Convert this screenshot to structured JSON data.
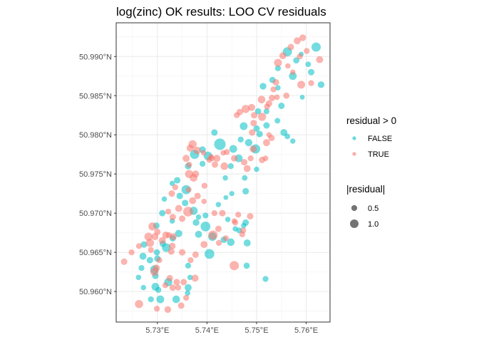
{
  "chart_data": {
    "type": "scatter",
    "title": "log(zinc) OK results: LOO CV residuals",
    "xlabel": "",
    "ylabel": "",
    "x_ticks": [
      {
        "value": 5.73,
        "label": "5.73°E"
      },
      {
        "value": 5.74,
        "label": "5.74°E"
      },
      {
        "value": 5.75,
        "label": "5.75°E"
      },
      {
        "value": 5.76,
        "label": "5.76°E"
      }
    ],
    "y_ticks": [
      {
        "value": 50.96,
        "label": "50.960°N"
      },
      {
        "value": 50.965,
        "label": "50.965°N"
      },
      {
        "value": 50.97,
        "label": "50.970°N"
      },
      {
        "value": 50.975,
        "label": "50.975°N"
      },
      {
        "value": 50.98,
        "label": "50.980°N"
      },
      {
        "value": 50.985,
        "label": "50.985°N"
      },
      {
        "value": 50.99,
        "label": "50.990°N"
      }
    ],
    "xlim": [
      5.7217,
      5.7648
    ],
    "ylim": [
      50.9561,
      50.9943
    ],
    "grid": true,
    "legend_position": "right",
    "colors": {
      "FALSE": "#00BFC4",
      "TRUE": "#F8766D"
    },
    "legend_color": {
      "title": "residual > 0",
      "entries": [
        {
          "label": "FALSE",
          "key": "FALSE"
        },
        {
          "label": "TRUE",
          "key": "TRUE"
        }
      ]
    },
    "legend_size": {
      "title": "|residual|",
      "entries": [
        {
          "label": "0.5",
          "value": 0.5
        },
        {
          "label": "1.0",
          "value": 1.0
        }
      ]
    },
    "series": [
      {
        "name": "FALSE",
        "points": [
          [
            5.759,
            50.9903,
            0.16
          ],
          [
            5.762,
            50.9912,
            0.55
          ],
          [
            5.7604,
            50.989,
            0.22
          ],
          [
            5.758,
            50.9895,
            0.28
          ],
          [
            5.7562,
            50.9906,
            0.55
          ],
          [
            5.761,
            50.988,
            0.3
          ],
          [
            5.7573,
            50.9875,
            0.42
          ],
          [
            5.7543,
            50.9885,
            0.25
          ],
          [
            5.7532,
            50.987,
            0.28
          ],
          [
            5.7513,
            50.9862,
            0.32
          ],
          [
            5.7543,
            50.986,
            0.2
          ],
          [
            5.763,
            50.9864,
            0.32
          ],
          [
            5.7592,
            50.9848,
            0.16
          ],
          [
            5.755,
            50.9837,
            0.3
          ],
          [
            5.752,
            50.983,
            0.24
          ],
          [
            5.7542,
            50.9818,
            0.22
          ],
          [
            5.7503,
            50.983,
            0.28
          ],
          [
            5.752,
            50.9812,
            0.3
          ],
          [
            5.7555,
            50.9803,
            0.35
          ],
          [
            5.75,
            50.9808,
            0.3
          ],
          [
            5.7484,
            50.979,
            0.38
          ],
          [
            5.7474,
            50.9811,
            0.42
          ],
          [
            5.7468,
            50.9794,
            0.25
          ],
          [
            5.7573,
            50.9792,
            0.2
          ],
          [
            5.7562,
            50.9798,
            0.22
          ],
          [
            5.7506,
            50.9801,
            0.3
          ],
          [
            5.7498,
            50.9782,
            0.55
          ],
          [
            5.7426,
            50.9788,
            0.75
          ],
          [
            5.7453,
            50.9782,
            0.42
          ],
          [
            5.7464,
            50.977,
            0.42
          ],
          [
            5.7402,
            50.9773,
            0.5
          ],
          [
            5.7375,
            50.9775,
            0.55
          ],
          [
            5.7391,
            50.9781,
            0.32
          ],
          [
            5.7415,
            50.9803,
            0.3
          ],
          [
            5.7448,
            50.976,
            0.25
          ],
          [
            5.7391,
            50.9763,
            0.25
          ],
          [
            5.7362,
            50.976,
            0.3
          ],
          [
            5.7437,
            50.9745,
            0.2
          ],
          [
            5.7476,
            50.9745,
            0.22
          ],
          [
            5.75,
            50.9756,
            0.2
          ],
          [
            5.7478,
            50.9728,
            0.3
          ],
          [
            5.7438,
            50.972,
            0.15
          ],
          [
            5.745,
            50.9725,
            0.18
          ],
          [
            5.7423,
            50.9711,
            0.2
          ],
          [
            5.7358,
            50.973,
            0.55
          ],
          [
            5.7345,
            50.9722,
            0.3
          ],
          [
            5.734,
            50.9742,
            0.3
          ],
          [
            5.733,
            50.9738,
            0.2
          ],
          [
            5.7314,
            50.9718,
            0.2
          ],
          [
            5.731,
            50.97,
            0.3
          ],
          [
            5.7356,
            50.9713,
            0.3
          ],
          [
            5.7373,
            50.9703,
            0.45
          ],
          [
            5.7383,
            50.9695,
            0.2
          ],
          [
            5.7397,
            50.9697,
            0.25
          ],
          [
            5.7442,
            50.9692,
            0.2
          ],
          [
            5.7478,
            50.9688,
            0.3
          ],
          [
            5.7474,
            50.9684,
            0.2
          ],
          [
            5.7457,
            50.968,
            0.2
          ],
          [
            5.7383,
            50.9673,
            0.35
          ],
          [
            5.7378,
            50.9688,
            0.32
          ],
          [
            5.733,
            50.969,
            0.2
          ],
          [
            5.7298,
            50.9684,
            0.3
          ],
          [
            5.7331,
            50.9668,
            0.3
          ],
          [
            5.7343,
            50.9674,
            0.38
          ],
          [
            5.7397,
            50.9683,
            0.6
          ],
          [
            5.7411,
            50.967,
            0.48
          ],
          [
            5.7448,
            50.9663,
            0.4
          ],
          [
            5.7434,
            50.9666,
            0.3
          ],
          [
            5.7465,
            50.9678,
            0.25
          ],
          [
            5.7481,
            50.9662,
            0.35
          ],
          [
            5.7273,
            50.966,
            0.3
          ],
          [
            5.7299,
            50.965,
            0.28
          ],
          [
            5.7311,
            50.9661,
            0.3
          ],
          [
            5.7318,
            50.9656,
            0.5
          ],
          [
            5.73,
            50.9642,
            0.3
          ],
          [
            5.7285,
            50.964,
            0.3
          ],
          [
            5.7268,
            50.963,
            0.25
          ],
          [
            5.7271,
            50.9645,
            0.35
          ],
          [
            5.7294,
            50.9628,
            0.48
          ],
          [
            5.7405,
            50.9648,
            0.6
          ],
          [
            5.748,
            50.9633,
            0.28
          ],
          [
            5.7362,
            50.9633,
            0.25
          ],
          [
            5.7322,
            50.9612,
            0.45
          ],
          [
            5.7302,
            50.9602,
            0.25
          ],
          [
            5.7296,
            50.9606,
            0.42
          ],
          [
            5.7306,
            50.959,
            0.42
          ],
          [
            5.7338,
            50.959,
            0.4
          ],
          [
            5.7361,
            50.9598,
            0.2
          ],
          [
            5.7366,
            50.9618,
            0.2
          ],
          [
            5.7296,
            50.962,
            0.3
          ],
          [
            5.7272,
            50.9605,
            0.2
          ],
          [
            5.7287,
            50.959,
            0.25
          ],
          [
            5.7518,
            50.9616,
            0.25
          ],
          [
            5.7362,
            50.9605,
            0.35
          ],
          [
            5.7262,
            50.9618,
            0.2
          ]
        ]
      },
      {
        "name": "TRUE",
        "points": [
          [
            5.7593,
            50.9924,
            0.32
          ],
          [
            5.7582,
            50.992,
            0.35
          ],
          [
            5.7601,
            50.9907,
            0.25
          ],
          [
            5.7569,
            50.9912,
            0.3
          ],
          [
            5.7627,
            50.9896,
            0.35
          ],
          [
            5.7587,
            50.99,
            0.25
          ],
          [
            5.7553,
            50.9901,
            0.35
          ],
          [
            5.7543,
            50.9892,
            0.42
          ],
          [
            5.7563,
            50.9888,
            0.2
          ],
          [
            5.7573,
            50.988,
            0.2
          ],
          [
            5.759,
            50.9864,
            0.42
          ],
          [
            5.761,
            50.9866,
            0.25
          ],
          [
            5.7539,
            50.9867,
            0.3
          ],
          [
            5.7534,
            50.9858,
            0.25
          ],
          [
            5.756,
            50.985,
            0.28
          ],
          [
            5.7541,
            50.9848,
            0.22
          ],
          [
            5.7531,
            50.9847,
            0.3
          ],
          [
            5.751,
            50.9845,
            0.4
          ],
          [
            5.7525,
            50.984,
            0.3
          ],
          [
            5.7521,
            50.9836,
            0.25
          ],
          [
            5.749,
            50.9835,
            0.35
          ],
          [
            5.7478,
            50.9833,
            0.45
          ],
          [
            5.7466,
            50.9829,
            0.3
          ],
          [
            5.746,
            50.9825,
            0.25
          ],
          [
            5.7511,
            50.9823,
            0.45
          ],
          [
            5.7495,
            50.9825,
            0.3
          ],
          [
            5.7494,
            50.9815,
            0.3
          ],
          [
            5.7491,
            50.9803,
            0.3
          ],
          [
            5.7525,
            50.98,
            0.2
          ],
          [
            5.753,
            50.9796,
            0.28
          ],
          [
            5.752,
            50.979,
            0.35
          ],
          [
            5.7493,
            50.9782,
            0.35
          ],
          [
            5.7488,
            50.977,
            0.25
          ],
          [
            5.7475,
            50.9765,
            0.3
          ],
          [
            5.7518,
            50.977,
            0.22
          ],
          [
            5.7511,
            50.9768,
            0.3
          ],
          [
            5.7481,
            50.9757,
            0.35
          ],
          [
            5.7455,
            50.977,
            0.3
          ],
          [
            5.744,
            50.9778,
            0.25
          ],
          [
            5.7433,
            50.9777,
            0.22
          ],
          [
            5.742,
            50.977,
            0.35
          ],
          [
            5.7416,
            50.9762,
            0.3
          ],
          [
            5.741,
            50.977,
            0.25
          ],
          [
            5.7408,
            50.9772,
            0.2
          ],
          [
            5.7435,
            50.976,
            0.4
          ],
          [
            5.738,
            50.978,
            0.4
          ],
          [
            5.7371,
            50.9788,
            0.45
          ],
          [
            5.7366,
            50.9783,
            0.35
          ],
          [
            5.7358,
            50.977,
            0.35
          ],
          [
            5.7393,
            50.9777,
            0.2
          ],
          [
            5.7405,
            50.9768,
            0.25
          ],
          [
            5.7364,
            50.9762,
            0.25
          ],
          [
            5.7364,
            50.975,
            0.45
          ],
          [
            5.7377,
            50.975,
            0.35
          ],
          [
            5.7373,
            50.9745,
            0.4
          ],
          [
            5.7395,
            50.9735,
            0.25
          ],
          [
            5.7363,
            50.973,
            0.25
          ],
          [
            5.7329,
            50.9725,
            0.3
          ],
          [
            5.7336,
            50.9733,
            0.25
          ],
          [
            5.7381,
            50.9722,
            0.3
          ],
          [
            5.7371,
            50.9716,
            0.35
          ],
          [
            5.7362,
            50.9702,
            0.6
          ],
          [
            5.7343,
            50.9706,
            0.35
          ],
          [
            5.7322,
            50.9702,
            0.25
          ],
          [
            5.7331,
            50.9695,
            0.3
          ],
          [
            5.735,
            50.9693,
            0.3
          ],
          [
            5.729,
            50.9683,
            0.45
          ],
          [
            5.7295,
            50.967,
            0.35
          ],
          [
            5.7282,
            50.967,
            0.45
          ],
          [
            5.7317,
            50.9672,
            0.35
          ],
          [
            5.73,
            50.9676,
            0.3
          ],
          [
            5.7323,
            50.9672,
            0.25
          ],
          [
            5.7332,
            50.967,
            0.35
          ],
          [
            5.733,
            50.9658,
            0.32
          ],
          [
            5.731,
            50.9665,
            0.35
          ],
          [
            5.7328,
            50.9651,
            0.3
          ],
          [
            5.7287,
            50.9653,
            0.25
          ],
          [
            5.7304,
            50.964,
            0.25
          ],
          [
            5.735,
            50.965,
            0.3
          ],
          [
            5.7367,
            50.964,
            0.25
          ],
          [
            5.7377,
            50.9647,
            0.3
          ],
          [
            5.7394,
            50.966,
            0.35
          ],
          [
            5.7412,
            50.9672,
            0.55
          ],
          [
            5.7423,
            50.968,
            0.3
          ],
          [
            5.7457,
            50.9688,
            0.25
          ],
          [
            5.7473,
            50.9678,
            0.25
          ],
          [
            5.7415,
            50.97,
            0.25
          ],
          [
            5.7431,
            50.97,
            0.3
          ],
          [
            5.7455,
            50.969,
            0.2
          ],
          [
            5.7463,
            50.9698,
            0.25
          ],
          [
            5.7487,
            50.9696,
            0.3
          ],
          [
            5.7471,
            50.9673,
            0.25
          ],
          [
            5.7438,
            50.9668,
            0.25
          ],
          [
            5.7455,
            50.9633,
            0.55
          ],
          [
            5.7424,
            50.9662,
            0.25
          ],
          [
            5.7394,
            50.9715,
            0.2
          ],
          [
            5.7233,
            50.9638,
            0.3
          ],
          [
            5.7248,
            50.965,
            0.25
          ],
          [
            5.7263,
            50.9658,
            0.25
          ],
          [
            5.7285,
            50.9662,
            0.45
          ],
          [
            5.7298,
            50.963,
            0.35
          ],
          [
            5.7294,
            50.9625,
            0.45
          ],
          [
            5.7316,
            50.9608,
            0.25
          ],
          [
            5.7331,
            50.9605,
            0.3
          ],
          [
            5.7339,
            50.9612,
            0.3
          ],
          [
            5.7342,
            50.9605,
            0.25
          ],
          [
            5.7353,
            50.9612,
            0.3
          ],
          [
            5.7358,
            50.9592,
            0.25
          ],
          [
            5.7376,
            50.9617,
            0.35
          ],
          [
            5.7325,
            50.9617,
            0.3
          ],
          [
            5.7263,
            50.9584,
            0.45
          ],
          [
            5.7299,
            50.9578,
            0.25
          ],
          [
            5.7321,
            50.9577,
            0.32
          ],
          [
            5.7348,
            50.9582,
            0.3
          ]
        ]
      }
    ]
  }
}
